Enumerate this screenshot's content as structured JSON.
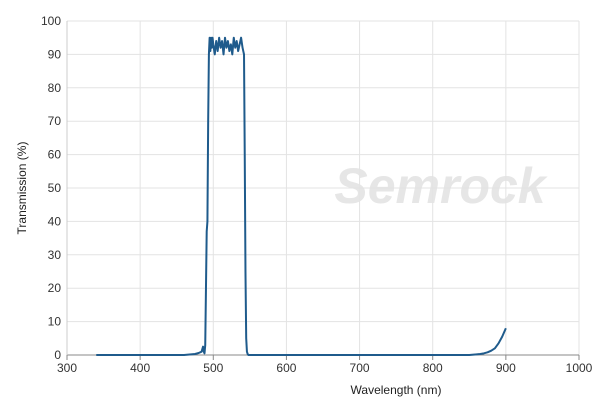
{
  "chart_data": {
    "type": "line",
    "title": "",
    "xlabel": "Wavelength (nm)",
    "ylabel": "Transmission (%)",
    "xlim": [
      300,
      1000
    ],
    "ylim": [
      0,
      100
    ],
    "x_ticks": [
      300,
      400,
      500,
      600,
      700,
      800,
      900,
      1000
    ],
    "y_ticks": [
      0,
      10,
      20,
      30,
      40,
      50,
      60,
      70,
      80,
      90,
      100
    ],
    "grid": true,
    "watermark": "Semrock",
    "line_color": "#1f5b8c",
    "series": [
      {
        "x": [
          340,
          400,
          460,
          475,
          480,
          484,
          486,
          487,
          488,
          489,
          490,
          491,
          492,
          493,
          494,
          495,
          496,
          497,
          498,
          499,
          500,
          502,
          504,
          506,
          508,
          510,
          512,
          514,
          516,
          518,
          520,
          522,
          524,
          526,
          528,
          530,
          532,
          534,
          536,
          538,
          540,
          541,
          542,
          543,
          544,
          545,
          546,
          547,
          548,
          550,
          600,
          700,
          800,
          850,
          860,
          865,
          870,
          875,
          880,
          885,
          890,
          895,
          900
        ],
        "y": [
          0,
          0,
          0,
          0.3,
          0.6,
          1,
          2.5,
          1,
          0.5,
          3,
          20,
          37,
          40,
          70,
          90,
          95,
          91,
          95,
          92,
          95,
          93,
          90,
          94,
          91,
          95,
          92,
          94,
          90,
          95,
          92,
          94,
          91,
          93,
          90,
          95,
          92,
          94,
          91,
          93,
          95,
          92,
          91,
          90,
          60,
          25,
          5,
          1,
          0.3,
          0,
          0,
          0,
          0,
          0,
          0,
          0.2,
          0.3,
          0.5,
          0.8,
          1.3,
          2,
          3.5,
          5.5,
          8
        ]
      }
    ]
  }
}
